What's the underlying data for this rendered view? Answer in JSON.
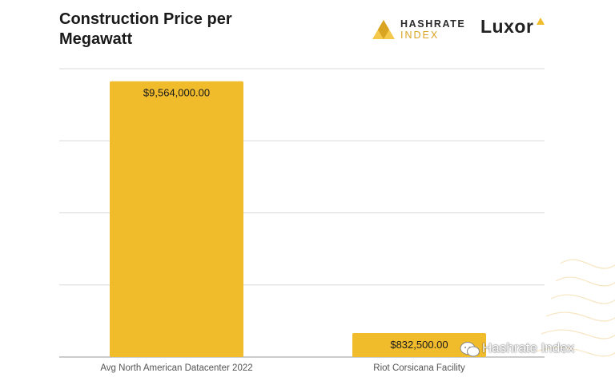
{
  "title": "Construction Price per Megawatt",
  "logos": {
    "hashrate_line1": "HASHRATE",
    "hashrate_line2": "INDEX",
    "luxor": "Luxor"
  },
  "watermark": "Hashrate Index",
  "colors": {
    "bar": "#f0bc2c",
    "grid": "#d9d9d9",
    "text": "#1a1a1a",
    "accent": "#d9a421"
  },
  "chart_data": {
    "type": "bar",
    "title": "Construction Price per Megawatt",
    "categories": [
      "Avg North American Datacenter 2022",
      "Riot Corsicana Facility"
    ],
    "values": [
      9564000,
      832500
    ],
    "value_labels": [
      "$9,564,000.00",
      "$832,500.00"
    ],
    "xlabel": "",
    "ylabel": "",
    "ylim": [
      0,
      10000000
    ],
    "grid": true,
    "legend": "none"
  }
}
